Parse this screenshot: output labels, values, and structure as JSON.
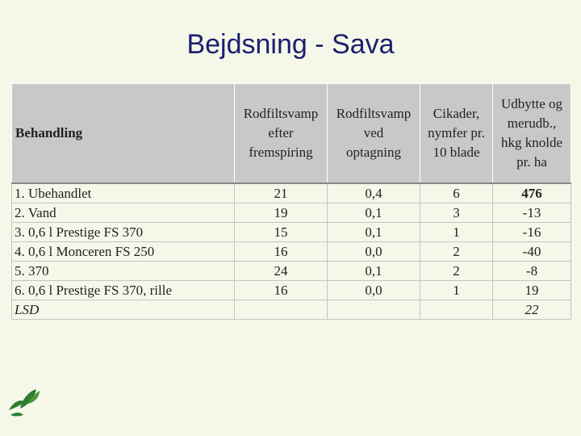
{
  "title": "Bejdsning - Sava",
  "colors": {
    "title": "#1a1f6e",
    "header_bg": "#c8c8c8",
    "background": "#f5f7e9",
    "logo_green": "#2e7d32"
  },
  "logo_icon": "leaf-logo-icon",
  "table": {
    "headers": [
      "Behandling",
      "Rodfiltsvamp\nefter\nfremspiring",
      "Rodfiltsvamp\nved\noptagning",
      "Cikader,\nnymfer pr.\n10 blade",
      "Udbytte og\nmerudb.,\nhkg knolde\npr. ha"
    ],
    "rows": [
      {
        "name": "1. Ubehandlet",
        "c1": "21",
        "c2": "0,4",
        "c3": "6",
        "c4": "476"
      },
      {
        "name": "2. Vand",
        "c1": "19",
        "c2": "0,1",
        "c3": "3",
        "c4": "-13"
      },
      {
        "name": "3. 0,6 l Prestige FS 370",
        "c1": "15",
        "c2": "0,1",
        "c3": "1",
        "c4": "-16"
      },
      {
        "name": "4. 0,6 l Monceren FS 250",
        "c1": "16",
        "c2": "0,0",
        "c3": "2",
        "c4": "-40"
      },
      {
        "name": "5. 370",
        "c1": "24",
        "c2": "0,1",
        "c3": "2",
        "c4": "-8"
      },
      {
        "name": "6. 0,6 l Prestige FS 370, rille",
        "c1": "16",
        "c2": "0,0",
        "c3": "1",
        "c4": "19"
      },
      {
        "name": "LSD",
        "c1": "",
        "c2": "",
        "c3": "",
        "c4": "22"
      }
    ]
  }
}
